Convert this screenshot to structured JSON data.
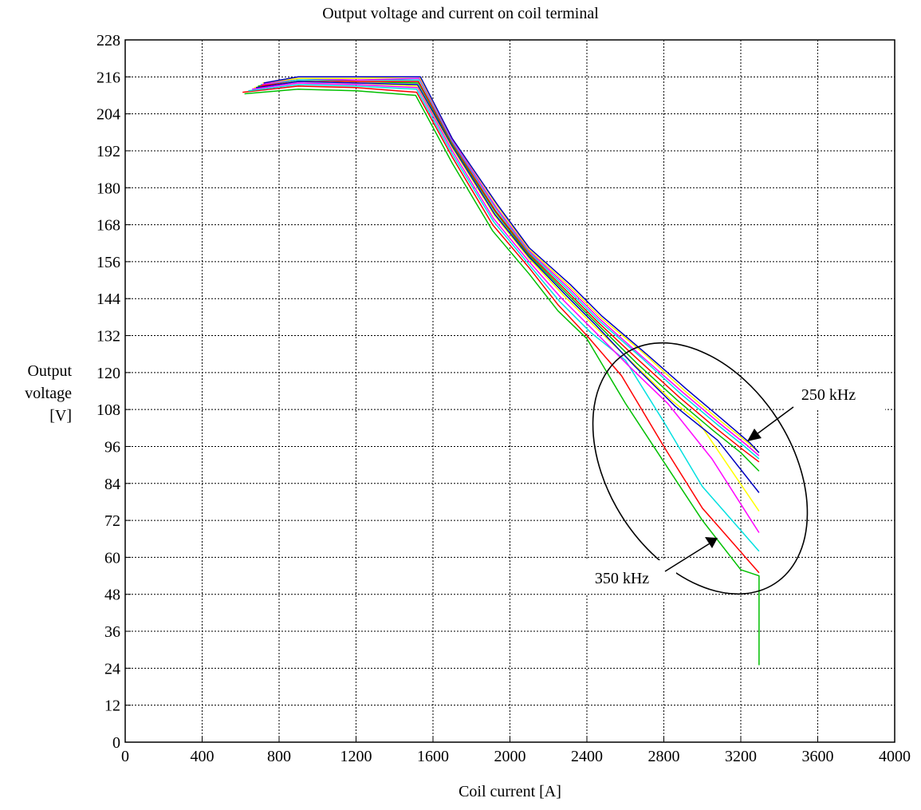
{
  "chart_data": {
    "type": "line",
    "title": "Output voltage and current on coil terminal",
    "xlabel": "Coil current [A]",
    "ylabel": [
      "Output",
      "voltage",
      "[V]"
    ],
    "xlim": [
      0,
      4000
    ],
    "ylim": [
      0,
      228
    ],
    "x_ticks": [
      0,
      400,
      800,
      1200,
      1600,
      2000,
      2400,
      2800,
      3200,
      3600,
      4000
    ],
    "y_ticks": [
      0,
      12,
      24,
      36,
      48,
      60,
      72,
      84,
      96,
      108,
      120,
      132,
      144,
      156,
      168,
      180,
      192,
      204,
      216,
      228
    ],
    "grid": true,
    "legend": "none",
    "annotations": [
      {
        "text": "250 kHz",
        "points_to": [
          3240,
          95
        ]
      },
      {
        "text": "350 kHz",
        "points_to": [
          3040,
          69
        ]
      }
    ],
    "series": [
      {
        "color": "#00c000",
        "points": [
          [
            620,
            210.5
          ],
          [
            900,
            212
          ],
          [
            1200,
            211.5
          ],
          [
            1510,
            210
          ],
          [
            1700,
            188
          ],
          [
            1910,
            166
          ],
          [
            2100,
            152
          ],
          [
            2250,
            140
          ],
          [
            2400,
            131
          ],
          [
            2600,
            110
          ],
          [
            2800,
            91
          ],
          [
            3000,
            72
          ],
          [
            3200,
            56
          ],
          [
            3295,
            54
          ],
          [
            3295,
            25
          ]
        ]
      },
      {
        "color": "#ff0000",
        "points": [
          [
            610,
            211
          ],
          [
            900,
            213
          ],
          [
            1200,
            212.5
          ],
          [
            1515,
            211
          ],
          [
            1700,
            190
          ],
          [
            1910,
            168
          ],
          [
            2100,
            154
          ],
          [
            2250,
            142
          ],
          [
            2400,
            132
          ],
          [
            2580,
            119
          ],
          [
            2800,
            96
          ],
          [
            3000,
            76
          ],
          [
            3295,
            55
          ]
        ]
      },
      {
        "color": "#00e0e0",
        "points": [
          [
            640,
            211.5
          ],
          [
            900,
            213.5
          ],
          [
            1200,
            213
          ],
          [
            1515,
            212
          ],
          [
            1700,
            191
          ],
          [
            1915,
            169
          ],
          [
            2100,
            155
          ],
          [
            2260,
            143
          ],
          [
            2420,
            133
          ],
          [
            2600,
            124
          ],
          [
            2800,
            104
          ],
          [
            3000,
            83
          ],
          [
            3295,
            62
          ]
        ]
      },
      {
        "color": "#ff00ff",
        "points": [
          [
            660,
            212
          ],
          [
            900,
            214
          ],
          [
            1200,
            213.5
          ],
          [
            1520,
            212.5
          ],
          [
            1700,
            192
          ],
          [
            1915,
            170
          ],
          [
            2100,
            156
          ],
          [
            2270,
            144
          ],
          [
            2430,
            134
          ],
          [
            2620,
            122
          ],
          [
            2820,
            110
          ],
          [
            3050,
            92
          ],
          [
            3295,
            68
          ]
        ]
      },
      {
        "color": "#ffff00",
        "points": [
          [
            670,
            212.5
          ],
          [
            900,
            214.5
          ],
          [
            1200,
            214
          ],
          [
            1520,
            213
          ],
          [
            1700,
            193
          ],
          [
            1920,
            171
          ],
          [
            2100,
            157
          ],
          [
            2280,
            145
          ],
          [
            2440,
            135
          ],
          [
            2640,
            123
          ],
          [
            2840,
            111
          ],
          [
            2980,
            104
          ],
          [
            3295,
            75
          ]
        ]
      },
      {
        "color": "#0000c0",
        "points": [
          [
            680,
            212.5
          ],
          [
            900,
            214.5
          ],
          [
            1200,
            214
          ],
          [
            1520,
            213.5
          ],
          [
            1700,
            193.5
          ],
          [
            1920,
            171.5
          ],
          [
            2100,
            157.5
          ],
          [
            2285,
            145.5
          ],
          [
            2445,
            135.5
          ],
          [
            2650,
            122
          ],
          [
            2860,
            109
          ],
          [
            3080,
            98
          ],
          [
            3295,
            81
          ]
        ]
      },
      {
        "color": "#00c000",
        "points": [
          [
            690,
            213
          ],
          [
            900,
            215
          ],
          [
            1200,
            214.5
          ],
          [
            1525,
            214
          ],
          [
            1700,
            194
          ],
          [
            1925,
            172
          ],
          [
            2100,
            158
          ],
          [
            2290,
            146
          ],
          [
            2450,
            136
          ],
          [
            2660,
            123
          ],
          [
            2870,
            111
          ],
          [
            3060,
            101
          ],
          [
            3200,
            94
          ],
          [
            3295,
            88
          ]
        ]
      },
      {
        "color": "#ff0000",
        "points": [
          [
            700,
            213
          ],
          [
            900,
            215
          ],
          [
            1200,
            214.5
          ],
          [
            1525,
            214.5
          ],
          [
            1700,
            194.5
          ],
          [
            1925,
            172.5
          ],
          [
            2100,
            158.5
          ],
          [
            2295,
            146.5
          ],
          [
            2455,
            136.5
          ],
          [
            2670,
            124
          ],
          [
            2880,
            112
          ],
          [
            3070,
            102
          ],
          [
            3210,
            95
          ],
          [
            3295,
            91
          ]
        ]
      },
      {
        "color": "#00e0e0",
        "points": [
          [
            705,
            213.5
          ],
          [
            900,
            215
          ],
          [
            1200,
            215
          ],
          [
            1530,
            215
          ],
          [
            1700,
            195
          ],
          [
            1930,
            173
          ],
          [
            2100,
            159
          ],
          [
            2300,
            147
          ],
          [
            2460,
            137
          ],
          [
            2680,
            125
          ],
          [
            2890,
            113
          ],
          [
            3080,
            103
          ],
          [
            3220,
            96
          ],
          [
            3295,
            92
          ]
        ]
      },
      {
        "color": "#ff00ff",
        "points": [
          [
            710,
            213.5
          ],
          [
            900,
            215.5
          ],
          [
            1200,
            215
          ],
          [
            1530,
            215.5
          ],
          [
            1700,
            195.5
          ],
          [
            1930,
            173.5
          ],
          [
            2100,
            159.5
          ],
          [
            2305,
            147.5
          ],
          [
            2465,
            137.5
          ],
          [
            2690,
            125
          ],
          [
            2900,
            113.5
          ],
          [
            3090,
            103.5
          ],
          [
            3230,
            96.5
          ],
          [
            3295,
            93
          ]
        ]
      },
      {
        "color": "#ffff00",
        "points": [
          [
            715,
            214
          ],
          [
            900,
            215.5
          ],
          [
            1200,
            215.5
          ],
          [
            1530,
            216
          ],
          [
            1700,
            196
          ],
          [
            1935,
            174
          ],
          [
            2100,
            160
          ],
          [
            2310,
            148
          ],
          [
            2470,
            138
          ],
          [
            2700,
            126
          ],
          [
            2910,
            114
          ],
          [
            3100,
            104
          ],
          [
            3240,
            97
          ],
          [
            3295,
            94
          ]
        ]
      },
      {
        "color": "#0000c0",
        "points": [
          [
            720,
            214
          ],
          [
            900,
            216
          ],
          [
            1200,
            216
          ],
          [
            1535,
            216
          ],
          [
            1700,
            196
          ],
          [
            1935,
            174.5
          ],
          [
            2100,
            160.5
          ],
          [
            2315,
            148.5
          ],
          [
            2475,
            138.5
          ],
          [
            2710,
            126
          ],
          [
            2920,
            114.5
          ],
          [
            3110,
            104.5
          ],
          [
            3250,
            97
          ],
          [
            3295,
            94
          ]
        ]
      }
    ]
  }
}
